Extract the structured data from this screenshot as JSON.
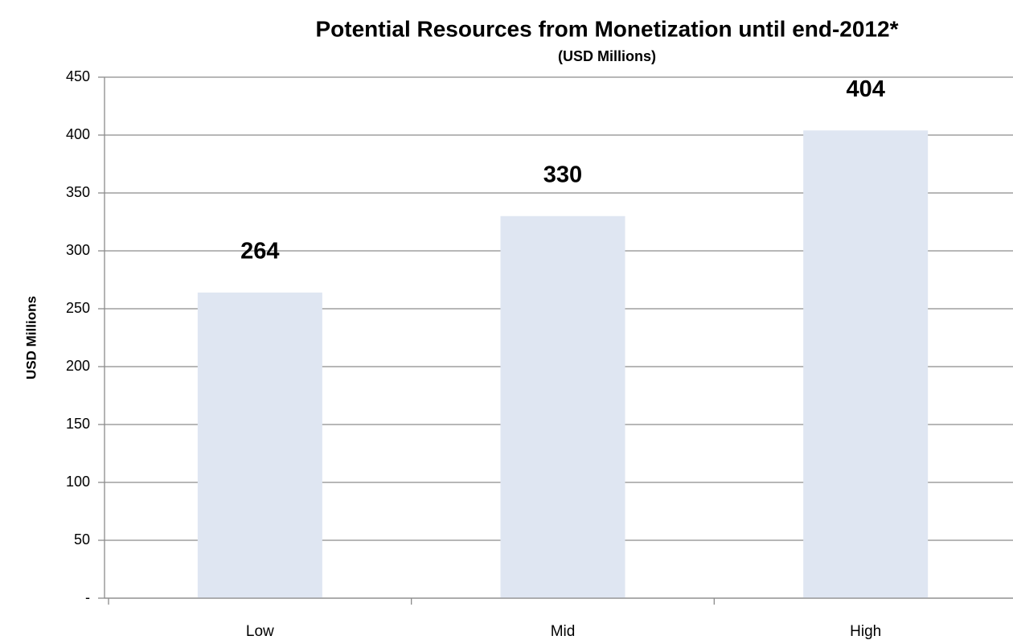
{
  "chart_data": {
    "type": "bar",
    "title": "Potential Resources from Monetization until end-2012*",
    "subtitle": "(USD Millions)",
    "y_label": "USD Millions",
    "categories": [
      "Low",
      "Mid",
      "High"
    ],
    "values": [
      264,
      330,
      404
    ],
    "color": "#dfe6f2",
    "ylim": [
      0,
      450
    ],
    "yticks": [
      {
        "value": 0,
        "label": "-"
      },
      50,
      100,
      150,
      200,
      250,
      300,
      350,
      400,
      450
    ],
    "grid": true
  }
}
